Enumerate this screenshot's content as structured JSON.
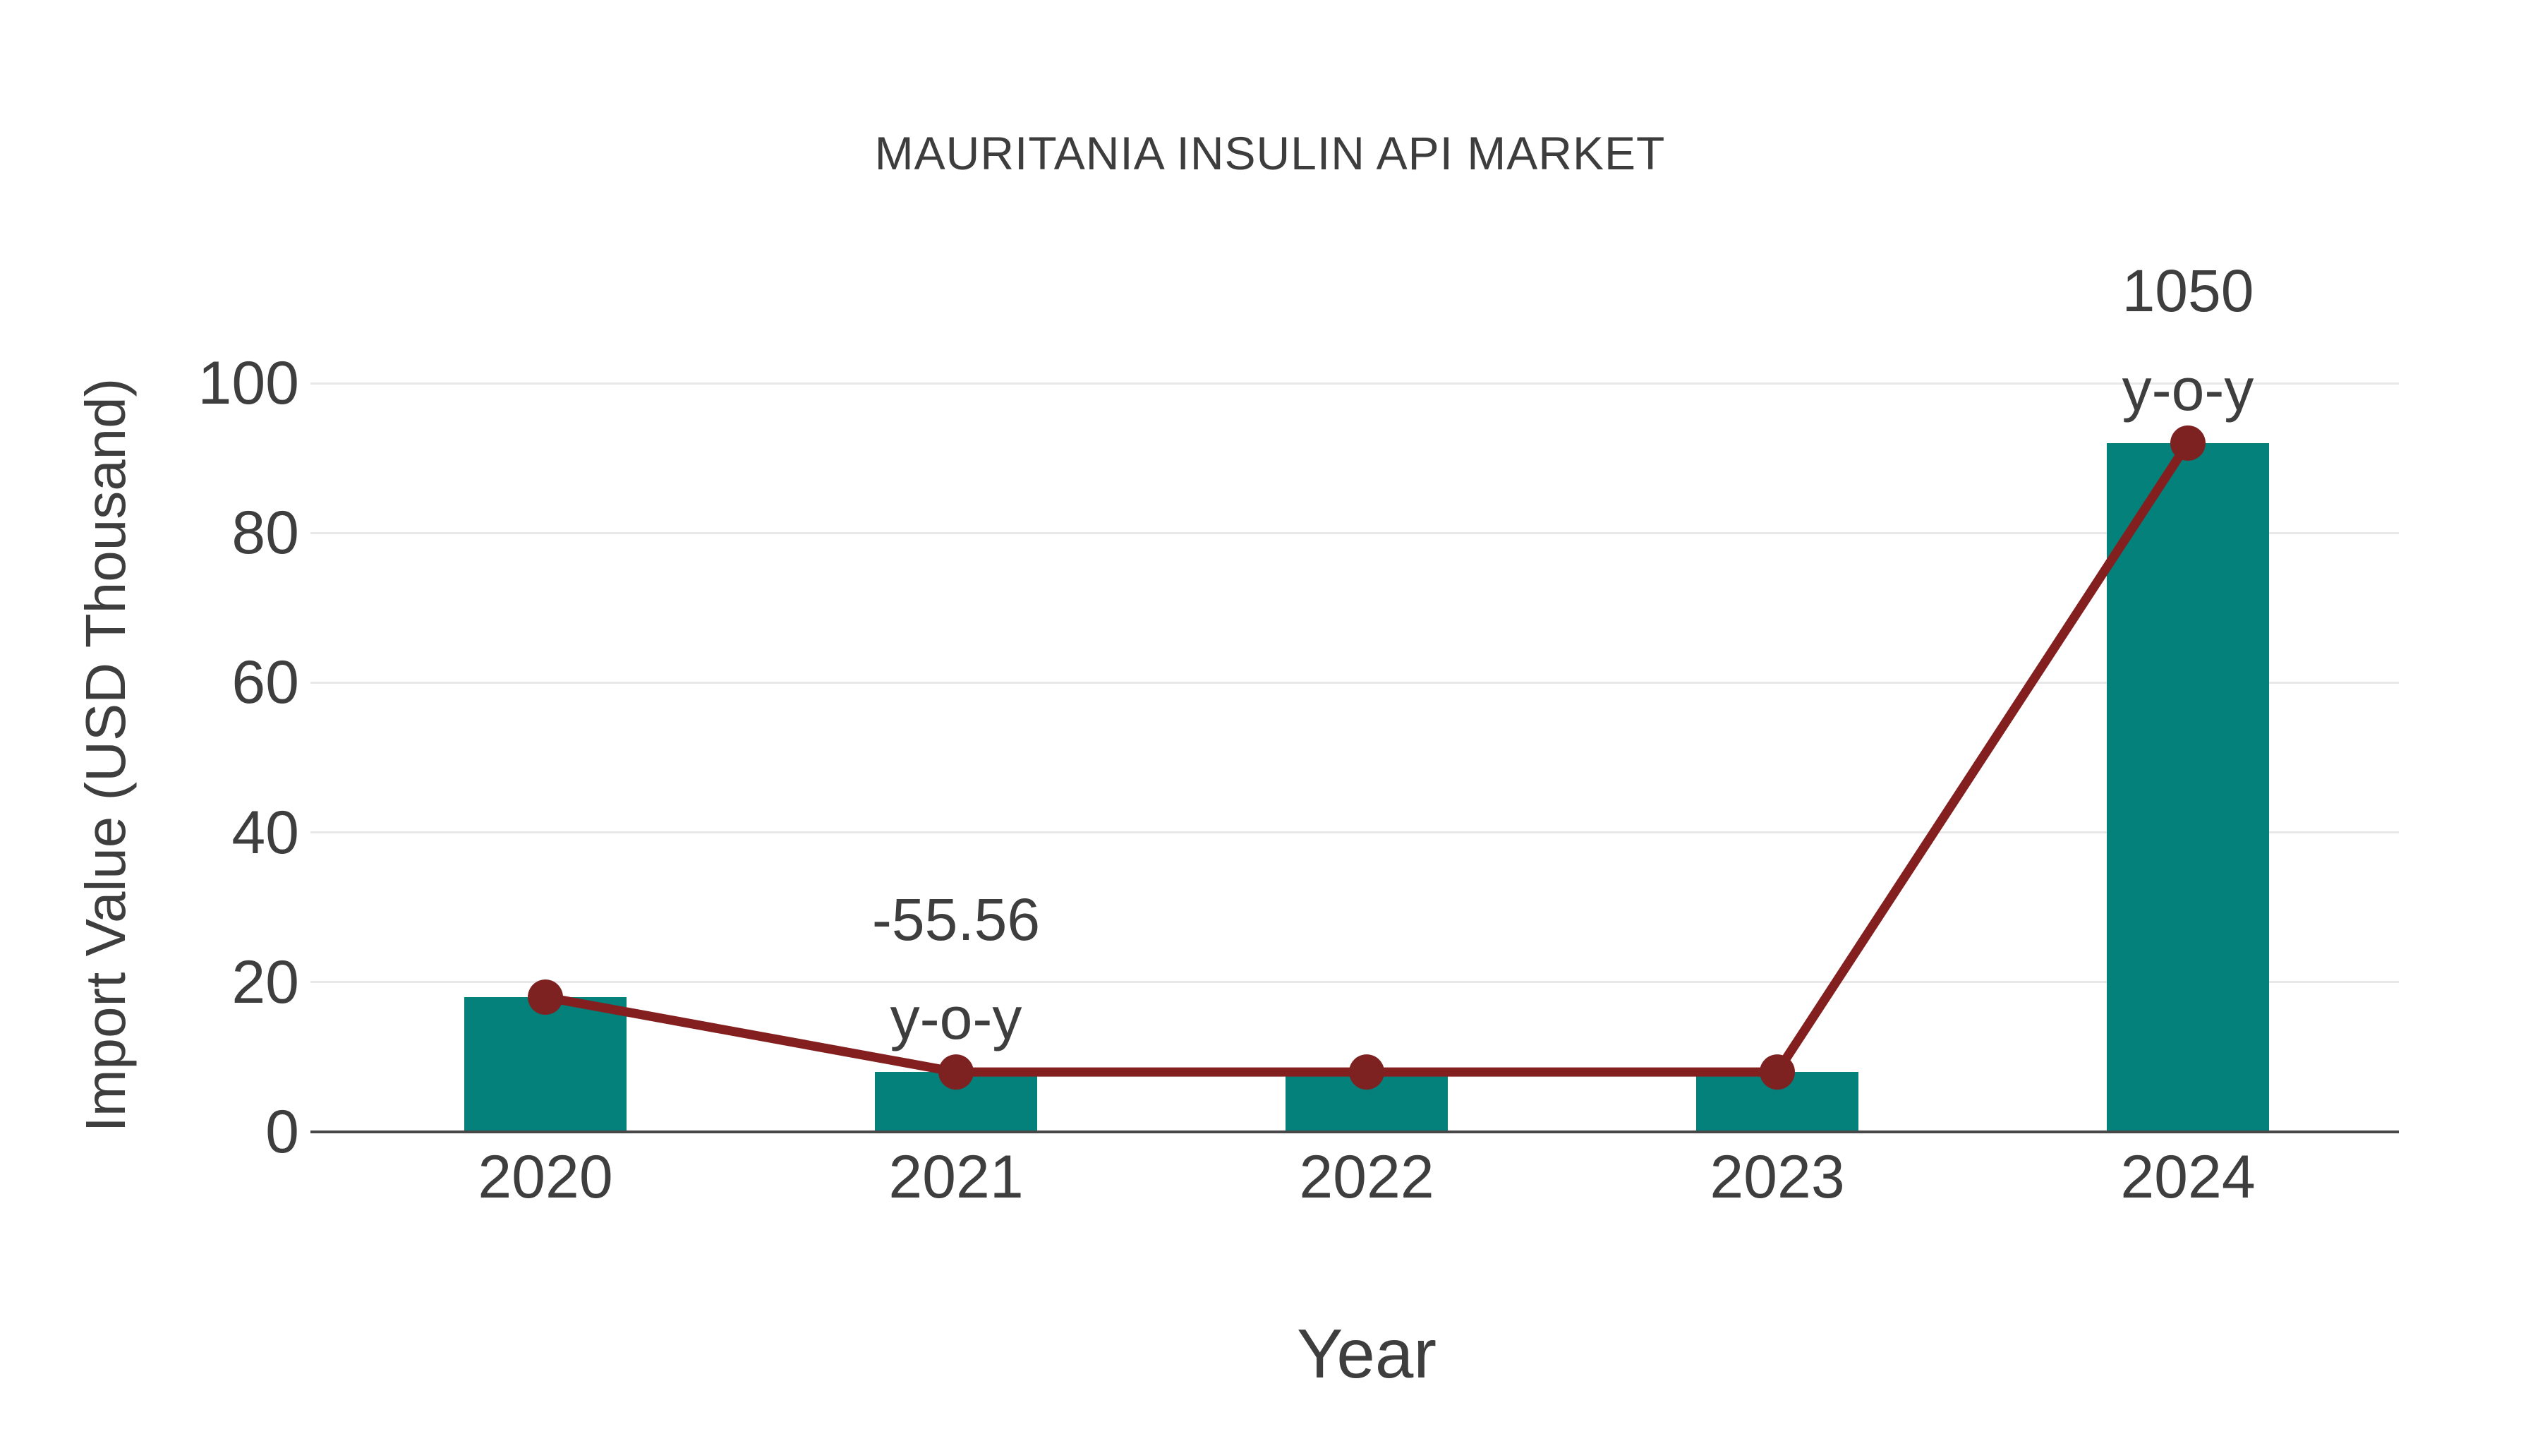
{
  "page": {
    "background": "#ffffff"
  },
  "chart_data": {
    "type": "bar",
    "title": "MAURITANIA INSULIN API MARKET",
    "xlabel": "Year",
    "ylabel": "Import Value (USD Thousand)",
    "categories": [
      "2020",
      "2021",
      "2022",
      "2023",
      "2024"
    ],
    "series": [
      {
        "name": "import-value-bars",
        "type": "bar",
        "values": [
          18,
          8,
          8,
          8,
          92
        ],
        "color": "#03817A"
      },
      {
        "name": "import-value-trend-line",
        "type": "line",
        "values": [
          18,
          8,
          8,
          8,
          92
        ],
        "color": "#841F1F"
      }
    ],
    "ylim": [
      0,
      100
    ],
    "yticks": [
      0,
      20,
      40,
      60,
      80,
      100
    ],
    "grid": true,
    "legend_position": "none",
    "annotations": [
      {
        "category": "2021",
        "lines": [
          "-55.56",
          "y-o-y"
        ]
      },
      {
        "category": "2024",
        "lines": [
          "1050",
          "y-o-y"
        ]
      }
    ],
    "colors": {
      "bar": "#03817A",
      "line": "#841F1F",
      "marker": "#7E2121",
      "title_text": "#3d3d3d",
      "axis_text": "#3e3e3e",
      "gridline": "#e8e8e8",
      "axis_line": "#474747"
    }
  }
}
